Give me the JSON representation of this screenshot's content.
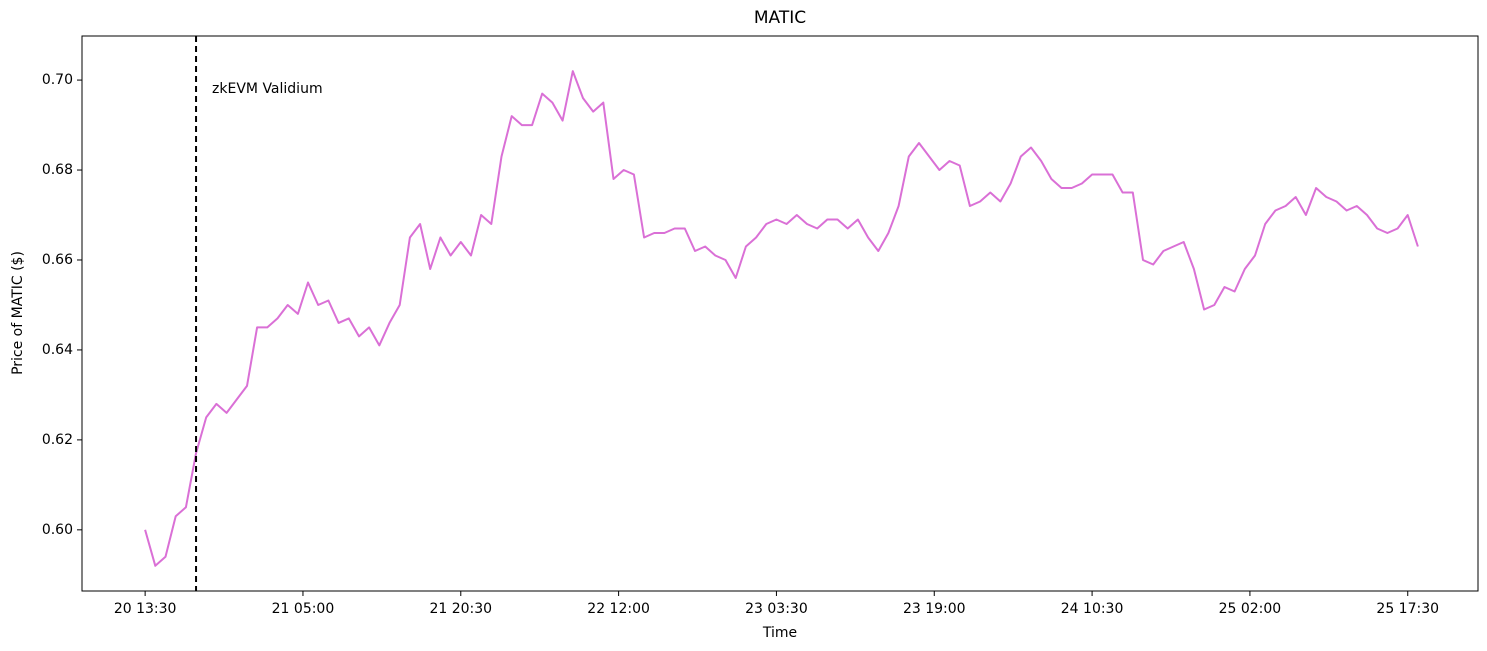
{
  "chart_data": {
    "type": "line",
    "title": "MATIC",
    "xlabel": "Time",
    "ylabel": "Price of MATIC ($)",
    "color": "#da70d6",
    "x": [
      "20 13:30",
      "20 14:30",
      "20 15:30",
      "20 16:30",
      "20 17:30",
      "20 18:30",
      "20 19:30",
      "20 20:30",
      "20 21:30",
      "20 22:30",
      "20 23:30",
      "21 00:30",
      "21 01:30",
      "21 02:30",
      "21 03:30",
      "21 04:30",
      "21 05:30",
      "21 06:30",
      "21 07:30",
      "21 08:30",
      "21 09:30",
      "21 10:30",
      "21 11:30",
      "21 12:30",
      "21 13:30",
      "21 14:30",
      "21 15:30",
      "21 16:30",
      "21 17:30",
      "21 18:30",
      "21 19:30",
      "21 20:30",
      "21 21:30",
      "21 22:30",
      "21 23:30",
      "22 00:30",
      "22 01:30",
      "22 02:30",
      "22 03:30",
      "22 04:30",
      "22 05:30",
      "22 06:30",
      "22 07:30",
      "22 08:30",
      "22 09:30",
      "22 10:30",
      "22 11:30",
      "22 12:30",
      "22 13:30",
      "22 14:30",
      "22 15:30",
      "22 16:30",
      "22 17:30",
      "22 18:30",
      "22 19:30",
      "22 20:30",
      "22 21:30",
      "22 22:30",
      "22 23:30",
      "23 00:30",
      "23 01:30",
      "23 02:30",
      "23 03:30",
      "23 04:30",
      "23 05:30",
      "23 06:30",
      "23 07:30",
      "23 08:30",
      "23 09:30",
      "23 10:30",
      "23 11:30",
      "23 12:30",
      "23 13:30",
      "23 14:30",
      "23 15:30",
      "23 16:30",
      "23 17:30",
      "23 18:30",
      "23 19:30",
      "23 20:30",
      "23 21:30",
      "23 22:30",
      "23 23:30",
      "24 00:30",
      "24 01:30",
      "24 02:30",
      "24 03:30",
      "24 04:30",
      "24 05:30",
      "24 06:30",
      "24 07:30",
      "24 08:30",
      "24 09:30",
      "24 10:30",
      "24 11:30",
      "24 12:30",
      "24 13:30",
      "24 14:30",
      "24 15:30",
      "24 16:30",
      "24 17:30",
      "24 18:30",
      "24 19:30",
      "24 20:30",
      "24 21:30",
      "24 22:30",
      "24 23:30",
      "25 00:30",
      "25 01:30",
      "25 02:30",
      "25 03:30",
      "25 04:30",
      "25 05:30",
      "25 06:30",
      "25 07:30",
      "25 08:30",
      "25 09:30",
      "25 10:30",
      "25 11:30",
      "25 12:30",
      "25 13:30",
      "25 14:30",
      "25 15:30",
      "25 16:30",
      "25 17:30",
      "25 18:30"
    ],
    "values": [
      0.6,
      0.592,
      0.594,
      0.603,
      0.605,
      0.617,
      0.625,
      0.628,
      0.626,
      0.629,
      0.632,
      0.645,
      0.645,
      0.647,
      0.65,
      0.648,
      0.655,
      0.65,
      0.651,
      0.646,
      0.647,
      0.643,
      0.645,
      0.641,
      0.646,
      0.65,
      0.665,
      0.668,
      0.658,
      0.665,
      0.661,
      0.664,
      0.661,
      0.67,
      0.668,
      0.683,
      0.692,
      0.69,
      0.69,
      0.697,
      0.695,
      0.691,
      0.702,
      0.696,
      0.693,
      0.695,
      0.678,
      0.68,
      0.679,
      0.665,
      0.666,
      0.666,
      0.667,
      0.667,
      0.662,
      0.663,
      0.661,
      0.66,
      0.656,
      0.663,
      0.665,
      0.668,
      0.669,
      0.668,
      0.67,
      0.668,
      0.667,
      0.669,
      0.669,
      0.667,
      0.669,
      0.665,
      0.662,
      0.666,
      0.672,
      0.683,
      0.686,
      0.683,
      0.68,
      0.682,
      0.681,
      0.672,
      0.673,
      0.675,
      0.673,
      0.677,
      0.683,
      0.685,
      0.682,
      0.678,
      0.676,
      0.676,
      0.677,
      0.679,
      0.679,
      0.679,
      0.675,
      0.675,
      0.66,
      0.659,
      0.662,
      0.663,
      0.664,
      0.658,
      0.649,
      0.65,
      0.654,
      0.653,
      0.658,
      0.661,
      0.668,
      0.671,
      0.672,
      0.674,
      0.67,
      0.676,
      0.674,
      0.673,
      0.671,
      0.672,
      0.67,
      0.667,
      0.666,
      0.667,
      0.67,
      0.663
    ],
    "xlim": [
      "20 07:18",
      "26 00:24"
    ],
    "xticks": [
      "20 13:30",
      "21 05:00",
      "21 20:30",
      "22 12:00",
      "23 03:30",
      "23 19:00",
      "24 10:30",
      "25 02:00",
      "25 17:30"
    ],
    "ylim": [
      0.5864,
      0.7098
    ],
    "yticks": [
      {
        "value": 0.6,
        "label": "0.60"
      },
      0.62,
      0.64,
      0.66,
      0.68,
      {
        "value": 0.7,
        "label": "0.70"
      }
    ],
    "vline": {
      "x": "20 18:30",
      "label": "zkEVM Validium",
      "color": "#000000"
    }
  }
}
